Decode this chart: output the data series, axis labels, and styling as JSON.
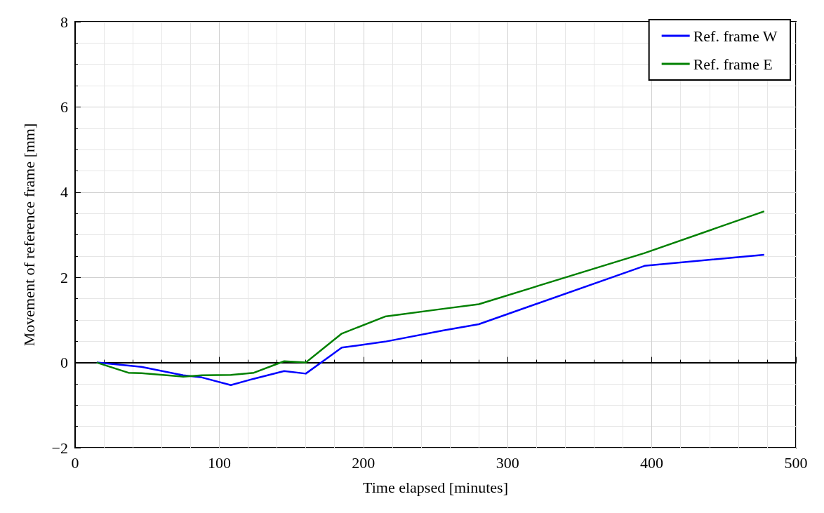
{
  "chart_data": {
    "type": "line",
    "xlabel": "Time elapsed [minutes]",
    "ylabel": "Movement of reference frame [mm]",
    "xlim": [
      0,
      500
    ],
    "xticks": [
      0,
      100,
      200,
      300,
      400,
      500
    ],
    "ylim": [
      -2,
      8
    ],
    "yticks": [
      -2,
      0,
      2,
      4,
      6,
      8
    ],
    "grid": true,
    "legend": "top right",
    "marker": "none",
    "line_style": "solid",
    "series": [
      {
        "name": "Ref. frame W",
        "color": "#0000ff",
        "x": [
          15,
          46,
          75,
          88,
          108,
          124,
          145,
          160,
          185,
          215,
          255,
          280,
          395,
          478
        ],
        "values": [
          0,
          -0.1,
          -0.3,
          -0.35,
          -0.53,
          -0.38,
          -0.2,
          -0.26,
          0.35,
          0.49,
          0.75,
          0.9,
          2.27,
          2.53
        ]
      },
      {
        "name": "Ref. frame E",
        "color": "#008000",
        "x": [
          15,
          37,
          46,
          75,
          88,
          108,
          124,
          145,
          160,
          185,
          215,
          255,
          280,
          395,
          478
        ],
        "values": [
          0,
          -0.24,
          -0.25,
          -0.33,
          -0.3,
          -0.29,
          -0.24,
          0.03,
          0,
          0.68,
          1.08,
          1.26,
          1.37,
          2.57,
          3.55
        ]
      }
    ]
  }
}
